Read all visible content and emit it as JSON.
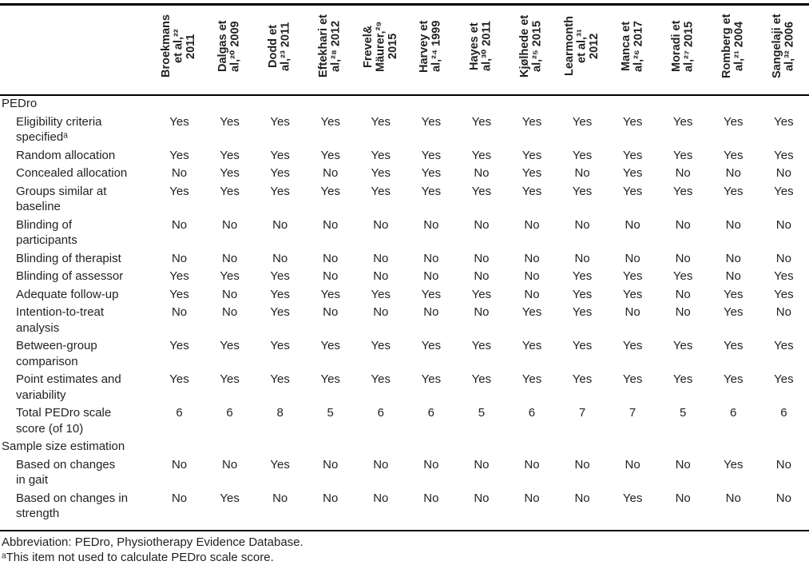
{
  "table": {
    "columns": [
      "Broekmans\net al,²²\n2011",
      "Dalgas et\nal,²⁰ 2009",
      "Dodd et\nal,²³ 2011",
      "Eftekhari et\nal,²⁸ 2012",
      "Frevel&\nMäurer,²⁹\n2015",
      "Harvey et\nal,²⁴ 1999",
      "Hayes et\nal,³⁰ 2011",
      "Kjølhede et\nal,²⁵ 2015",
      "Learmonth\net al,³¹\n2012",
      "Manca et\nal,²⁶ 2017",
      "Moradi et\nal,²⁷ 2015",
      "Romberg et\nal,²¹ 2004",
      "Sangelaji et\nal,³² 2006"
    ],
    "rows": [
      {
        "label": "PEDro",
        "section": true,
        "values": []
      },
      {
        "label": "Eligibility criteria\nspecifiedᵃ",
        "section": false,
        "values": [
          "Yes",
          "Yes",
          "Yes",
          "Yes",
          "Yes",
          "Yes",
          "Yes",
          "Yes",
          "Yes",
          "Yes",
          "Yes",
          "Yes",
          "Yes"
        ]
      },
      {
        "label": "Random allocation",
        "section": false,
        "values": [
          "Yes",
          "Yes",
          "Yes",
          "Yes",
          "Yes",
          "Yes",
          "Yes",
          "Yes",
          "Yes",
          "Yes",
          "Yes",
          "Yes",
          "Yes"
        ]
      },
      {
        "label": "Concealed allocation",
        "section": false,
        "values": [
          "No",
          "Yes",
          "Yes",
          "No",
          "Yes",
          "Yes",
          "No",
          "Yes",
          "No",
          "Yes",
          "No",
          "No",
          "No"
        ]
      },
      {
        "label": "Groups similar at\nbaseline",
        "section": false,
        "values": [
          "Yes",
          "Yes",
          "Yes",
          "Yes",
          "Yes",
          "Yes",
          "Yes",
          "Yes",
          "Yes",
          "Yes",
          "Yes",
          "Yes",
          "Yes"
        ]
      },
      {
        "label": "Blinding of\nparticipants",
        "section": false,
        "values": [
          "No",
          "No",
          "No",
          "No",
          "No",
          "No",
          "No",
          "No",
          "No",
          "No",
          "No",
          "No",
          "No"
        ]
      },
      {
        "label": "Blinding of therapist",
        "section": false,
        "values": [
          "No",
          "No",
          "No",
          "No",
          "No",
          "No",
          "No",
          "No",
          "No",
          "No",
          "No",
          "No",
          "No"
        ]
      },
      {
        "label": "Blinding of assessor",
        "section": false,
        "values": [
          "Yes",
          "Yes",
          "Yes",
          "No",
          "No",
          "No",
          "No",
          "No",
          "Yes",
          "Yes",
          "Yes",
          "No",
          "Yes"
        ]
      },
      {
        "label": "Adequate follow-up",
        "section": false,
        "values": [
          "Yes",
          "No",
          "Yes",
          "Yes",
          "Yes",
          "Yes",
          "Yes",
          "No",
          "Yes",
          "Yes",
          "No",
          "Yes",
          "Yes"
        ]
      },
      {
        "label": "Intention-to-treat\nanalysis",
        "section": false,
        "values": [
          "No",
          "No",
          "Yes",
          "No",
          "No",
          "No",
          "No",
          "Yes",
          "Yes",
          "No",
          "No",
          "Yes",
          "No"
        ]
      },
      {
        "label": "Between-group\ncomparison",
        "section": false,
        "values": [
          "Yes",
          "Yes",
          "Yes",
          "Yes",
          "Yes",
          "Yes",
          "Yes",
          "Yes",
          "Yes",
          "Yes",
          "Yes",
          "Yes",
          "Yes"
        ]
      },
      {
        "label": "Point estimates and\nvariability",
        "section": false,
        "values": [
          "Yes",
          "Yes",
          "Yes",
          "Yes",
          "Yes",
          "Yes",
          "Yes",
          "Yes",
          "Yes",
          "Yes",
          "Yes",
          "Yes",
          "Yes"
        ]
      },
      {
        "label": "Total PEDro scale\nscore (of 10)",
        "section": false,
        "values": [
          "6",
          "6",
          "8",
          "5",
          "6",
          "6",
          "5",
          "6",
          "7",
          "7",
          "5",
          "6",
          "6"
        ]
      },
      {
        "label": "Sample size estimation",
        "section": true,
        "values": []
      },
      {
        "label": "Based on changes\nin gait",
        "section": false,
        "values": [
          "No",
          "No",
          "Yes",
          "No",
          "No",
          "No",
          "No",
          "No",
          "No",
          "No",
          "No",
          "Yes",
          "No"
        ]
      },
      {
        "label": "Based on changes in\nstrength",
        "section": false,
        "values": [
          "No",
          "Yes",
          "No",
          "No",
          "No",
          "No",
          "No",
          "No",
          "No",
          "Yes",
          "No",
          "No",
          "No"
        ]
      }
    ],
    "footer": {
      "abbreviation": "Abbreviation: PEDro, Physiotherapy Evidence Database.",
      "footnote": "ᵃThis item not used to calculate PEDro scale score."
    }
  }
}
